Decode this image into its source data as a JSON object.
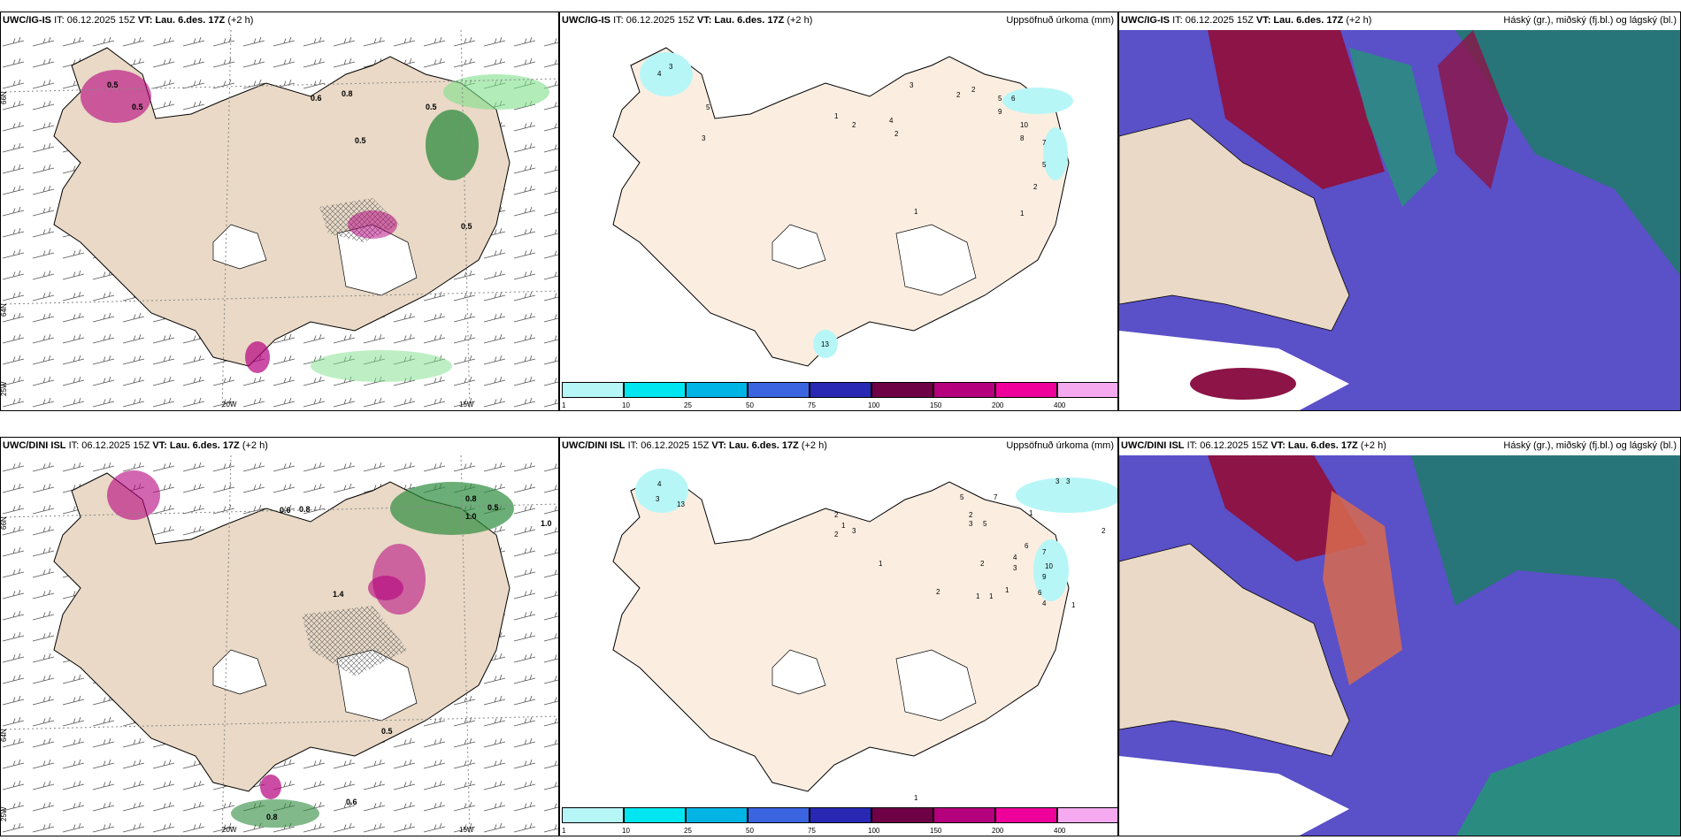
{
  "panels": [
    {
      "model": "UWC/IG-IS",
      "it": "IT: 06.12.2025 15Z",
      "vt": "VT: Lau. 6.des. 17Z",
      "lead": "(+2 h)",
      "right": "",
      "lon_labels": [
        "20W",
        "15W"
      ],
      "lat_labels": [
        "66N",
        "64N",
        "25W"
      ],
      "values": [
        "0.5",
        "0.5",
        "0.5",
        "0.5",
        "0.6",
        "0.8",
        "0.5"
      ]
    },
    {
      "model": "UWC/IG-IS",
      "it": "IT: 06.12.2025 15Z",
      "vt": "VT: Lau. 6.des. 17Z",
      "lead": "(+2 h)",
      "right": "Uppsöfnuð úrkoma (mm)",
      "values": [
        "4",
        "3",
        "5",
        "3",
        "1",
        "2",
        "4",
        "2",
        "3",
        "2",
        "2",
        "5",
        "6",
        "9",
        "10",
        "7",
        "8",
        "5",
        "2",
        "1",
        "1",
        "13"
      ]
    },
    {
      "model": "UWC/IG-IS",
      "it": "IT: 06.12.2025 15Z",
      "vt": "VT: Lau. 6.des. 17Z",
      "lead": "(+2 h)",
      "right": "Háský (gr.), miðský (fj.bl.) og lágský (bl.)"
    },
    {
      "model": "UWC/DINI ISL",
      "it": "IT: 06.12.2025 15Z",
      "vt": "VT: Lau. 6.des. 17Z",
      "lead": "(+2 h)",
      "right": "",
      "lon_labels": [
        "20W",
        "15W"
      ],
      "lat_labels": [
        "66N",
        "64N",
        "25W"
      ],
      "values": [
        "0.6",
        "0.8",
        "0.5",
        "1.0",
        "1.0",
        "0.8",
        "0.6",
        "1.4",
        "0.5",
        "0.8"
      ]
    },
    {
      "model": "UWC/DINI ISL",
      "it": "IT: 06.12.2025 15Z",
      "vt": "VT: Lau. 6.des. 17Z",
      "lead": "(+2 h)",
      "right": "Uppsöfnuð úrkoma (mm)",
      "values": [
        "4",
        "3",
        "13",
        "2",
        "2",
        "3",
        "1",
        "1",
        "5",
        "7",
        "3",
        "3",
        "1",
        "2",
        "2",
        "3",
        "5",
        "6",
        "4",
        "3",
        "7",
        "10",
        "9",
        "2",
        "2",
        "1",
        "1",
        "1",
        "6",
        "4",
        "1",
        "1"
      ]
    },
    {
      "model": "UWC/DINI ISL",
      "it": "IT: 06.12.2025 15Z",
      "vt": "VT: Lau. 6.des. 17Z",
      "lead": "(+2 h)",
      "right": "Háský (gr.), miðský (fj.bl.) og lágský (bl.)"
    }
  ],
  "colorbar": {
    "ticks": [
      "1",
      "10",
      "25",
      "50",
      "75",
      "100",
      "150",
      "200",
      "400"
    ],
    "colors": [
      "#b7f6f7",
      "#00e6f0",
      "#00b4e6",
      "#3a64e0",
      "#2828b4",
      "#6e0046",
      "#b4007d",
      "#f0009b",
      "#f5aaf0"
    ]
  },
  "colors": {
    "land": "#e9d9c6",
    "land_precip": "#fbeee1",
    "cloud_low": "#5a50c8",
    "cloud_mid": "#8c1446",
    "cloud_high": "#1e9b6e"
  }
}
